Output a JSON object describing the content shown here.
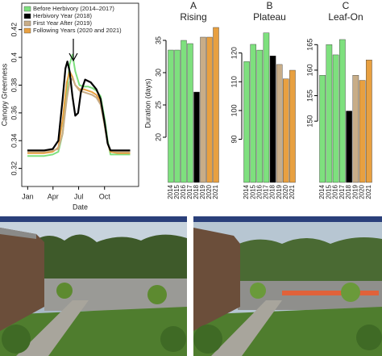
{
  "chart_data": [
    {
      "type": "line",
      "ylabel": "Canopy Greenness",
      "xlabel": "Date",
      "xlim": [
        -20,
        395
      ],
      "xticks": [
        {
          "value": 1,
          "label": "Jan"
        },
        {
          "value": 91,
          "label": "Apr"
        },
        {
          "value": 182,
          "label": "Jul"
        },
        {
          "value": 274,
          "label": "Oct"
        }
      ],
      "ylim": [
        0.307,
        0.439
      ],
      "yticks": [
        0.32,
        0.34,
        0.36,
        0.38,
        0.4,
        0.42
      ],
      "legend": "top-left",
      "series": [
        {
          "name": "Before Herbivory (2014–2017)",
          "color": "#7ee07e",
          "x": [
            0,
            30,
            60,
            90,
            110,
            125,
            140,
            150,
            160,
            170,
            185,
            200,
            215,
            230,
            245,
            260,
            275,
            285,
            295,
            320,
            350,
            365
          ],
          "values": [
            0.329,
            0.329,
            0.329,
            0.33,
            0.332,
            0.345,
            0.375,
            0.395,
            0.402,
            0.39,
            0.38,
            0.379,
            0.379,
            0.378,
            0.376,
            0.372,
            0.355,
            0.34,
            0.33,
            0.33,
            0.33,
            0.33
          ]
        },
        {
          "name": "Following Years (2020 and 2021)",
          "color": "#e8a040",
          "x": [
            0,
            30,
            60,
            90,
            110,
            125,
            140,
            150,
            160,
            170,
            185,
            200,
            215,
            230,
            245,
            260,
            275,
            285,
            295,
            320,
            350,
            365
          ],
          "values": [
            0.331,
            0.331,
            0.331,
            0.332,
            0.335,
            0.355,
            0.382,
            0.39,
            0.386,
            0.38,
            0.377,
            0.377,
            0.376,
            0.375,
            0.373,
            0.368,
            0.35,
            0.338,
            0.332,
            0.331,
            0.331,
            0.331
          ]
        },
        {
          "name": "First Year After (2019)",
          "color": "#c8ad88",
          "x": [
            0,
            30,
            60,
            90,
            110,
            125,
            140,
            150,
            160,
            170,
            185,
            200,
            215,
            230,
            245,
            260,
            275,
            285,
            295,
            320,
            350,
            365
          ],
          "values": [
            0.332,
            0.332,
            0.332,
            0.333,
            0.334,
            0.345,
            0.37,
            0.382,
            0.385,
            0.38,
            0.376,
            0.375,
            0.374,
            0.373,
            0.371,
            0.366,
            0.35,
            0.338,
            0.333,
            0.332,
            0.332,
            0.332
          ]
        },
        {
          "name": "Herbivory Year (2018)",
          "color": "#000000",
          "x": [
            0,
            30,
            60,
            90,
            110,
            125,
            135,
            142,
            150,
            160,
            170,
            180,
            190,
            205,
            225,
            245,
            260,
            275,
            285,
            295,
            320,
            365
          ],
          "values": [
            0.333,
            0.333,
            0.333,
            0.334,
            0.34,
            0.37,
            0.392,
            0.397,
            0.39,
            0.372,
            0.358,
            0.36,
            0.375,
            0.384,
            0.382,
            0.377,
            0.37,
            0.352,
            0.338,
            0.333,
            0.333,
            0.333
          ]
        }
      ]
    },
    {
      "type": "bar",
      "title": "A",
      "subtitle": "Rising",
      "ylabel": "Duration (days)",
      "categories": [
        "2014",
        "2015",
        "2016",
        "2017",
        "2018",
        "2019",
        "2020",
        "2021"
      ],
      "values": [
        33.5,
        33.5,
        35,
        34.5,
        27,
        35.5,
        35.5,
        37
      ],
      "colors": [
        "#7ee07e",
        "#7ee07e",
        "#7ee07e",
        "#7ee07e",
        "#000000",
        "#c8ad88",
        "#e8a040",
        "#e8a040"
      ],
      "ylim": [
        13,
        37.5
      ],
      "yticks": [
        20,
        25,
        30,
        35
      ]
    },
    {
      "type": "bar",
      "title": "B",
      "subtitle": "Plateau",
      "categories": [
        "2014",
        "2015",
        "2016",
        "2017",
        "2018",
        "2019",
        "2020",
        "2021"
      ],
      "values": [
        117,
        123,
        121,
        127,
        119,
        116,
        111,
        114
      ],
      "colors": [
        "#7ee07e",
        "#7ee07e",
        "#7ee07e",
        "#7ee07e",
        "#000000",
        "#c8ad88",
        "#e8a040",
        "#e8a040"
      ],
      "ylim": [
        75,
        130
      ],
      "yticks": [
        90,
        100,
        110,
        120
      ]
    },
    {
      "type": "bar",
      "title": "C",
      "subtitle": "Leaf-On",
      "categories": [
        "2014",
        "2015",
        "2016",
        "2017",
        "2018",
        "2019",
        "2020",
        "2021"
      ],
      "values": [
        159,
        165,
        163,
        166,
        152,
        159,
        158,
        162
      ],
      "colors": [
        "#7ee07e",
        "#7ee07e",
        "#7ee07e",
        "#7ee07e",
        "#000000",
        "#c8ad88",
        "#e8a040",
        "#e8a040"
      ],
      "ylim": [
        138,
        169
      ],
      "yticks": [
        150,
        155,
        160,
        165
      ]
    }
  ]
}
